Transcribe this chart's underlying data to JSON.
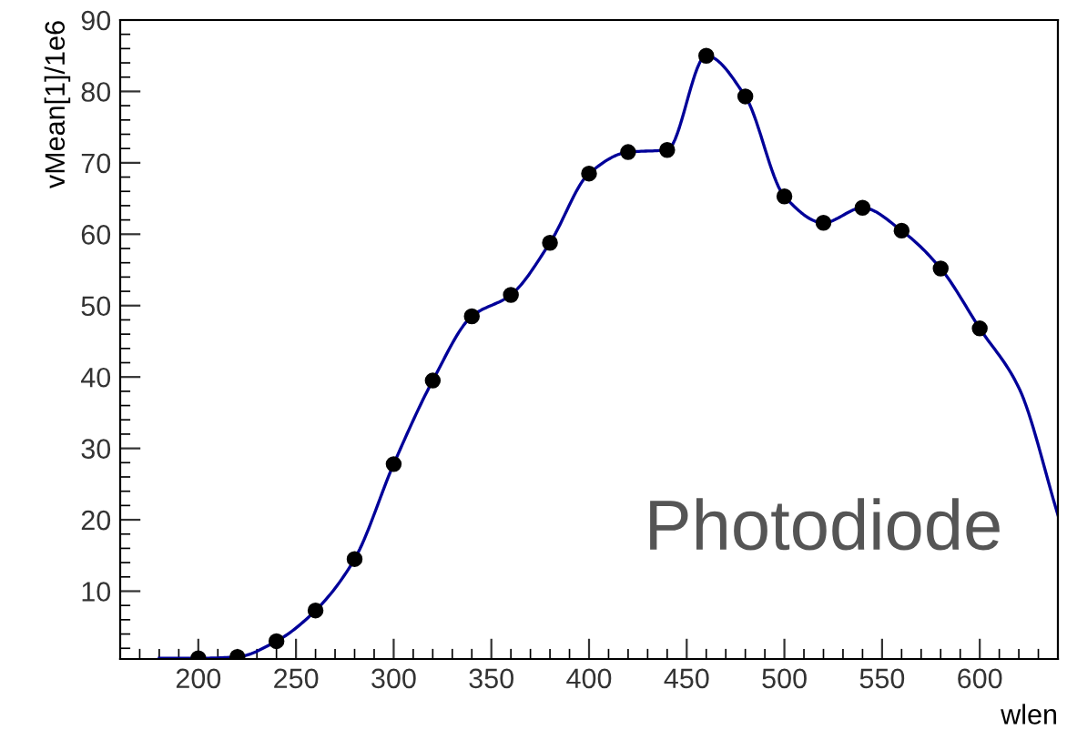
{
  "chart_data": {
    "type": "scatter",
    "xlabel": "wlen",
    "ylabel": "vMean[1]/1e6",
    "annotations": [
      "Photodiode"
    ],
    "xlim": [
      160,
      640
    ],
    "ylim": [
      0.5,
      90
    ],
    "xticks": [
      200,
      250,
      300,
      350,
      400,
      450,
      500,
      550,
      600
    ],
    "yticks": [
      10,
      20,
      30,
      40,
      50,
      60,
      70,
      80,
      90
    ],
    "grid": false,
    "legend": false,
    "series": [
      {
        "type": "line",
        "color": "#000099",
        "marker": "none",
        "x": [
          180,
          200,
          220,
          240,
          260,
          280,
          300,
          320,
          340,
          360,
          380,
          400,
          420,
          440,
          460,
          480,
          500,
          520,
          540,
          560,
          580,
          600,
          620,
          640
        ],
        "values": [
          0.6,
          0.6,
          0.8,
          3,
          7.3,
          14.5,
          27.8,
          39.5,
          48.5,
          51.5,
          58.8,
          68.5,
          71.5,
          71.8,
          85,
          79.3,
          65.3,
          61.6,
          63.7,
          60.5,
          55.2,
          46.8,
          38.5,
          20.7
        ]
      },
      {
        "color": "#000000",
        "marker": "circle",
        "x": [
          200,
          220,
          240,
          260,
          280,
          300,
          320,
          340,
          360,
          380,
          400,
          420,
          440,
          460,
          480,
          500,
          520,
          540,
          560,
          580,
          600
        ],
        "values": [
          0.6,
          0.8,
          3,
          7.3,
          14.5,
          27.8,
          39.5,
          48.5,
          51.5,
          58.8,
          68.5,
          71.5,
          71.8,
          85,
          79.3,
          65.3,
          61.6,
          63.7,
          60.5,
          55.2,
          46.8
        ]
      }
    ]
  }
}
